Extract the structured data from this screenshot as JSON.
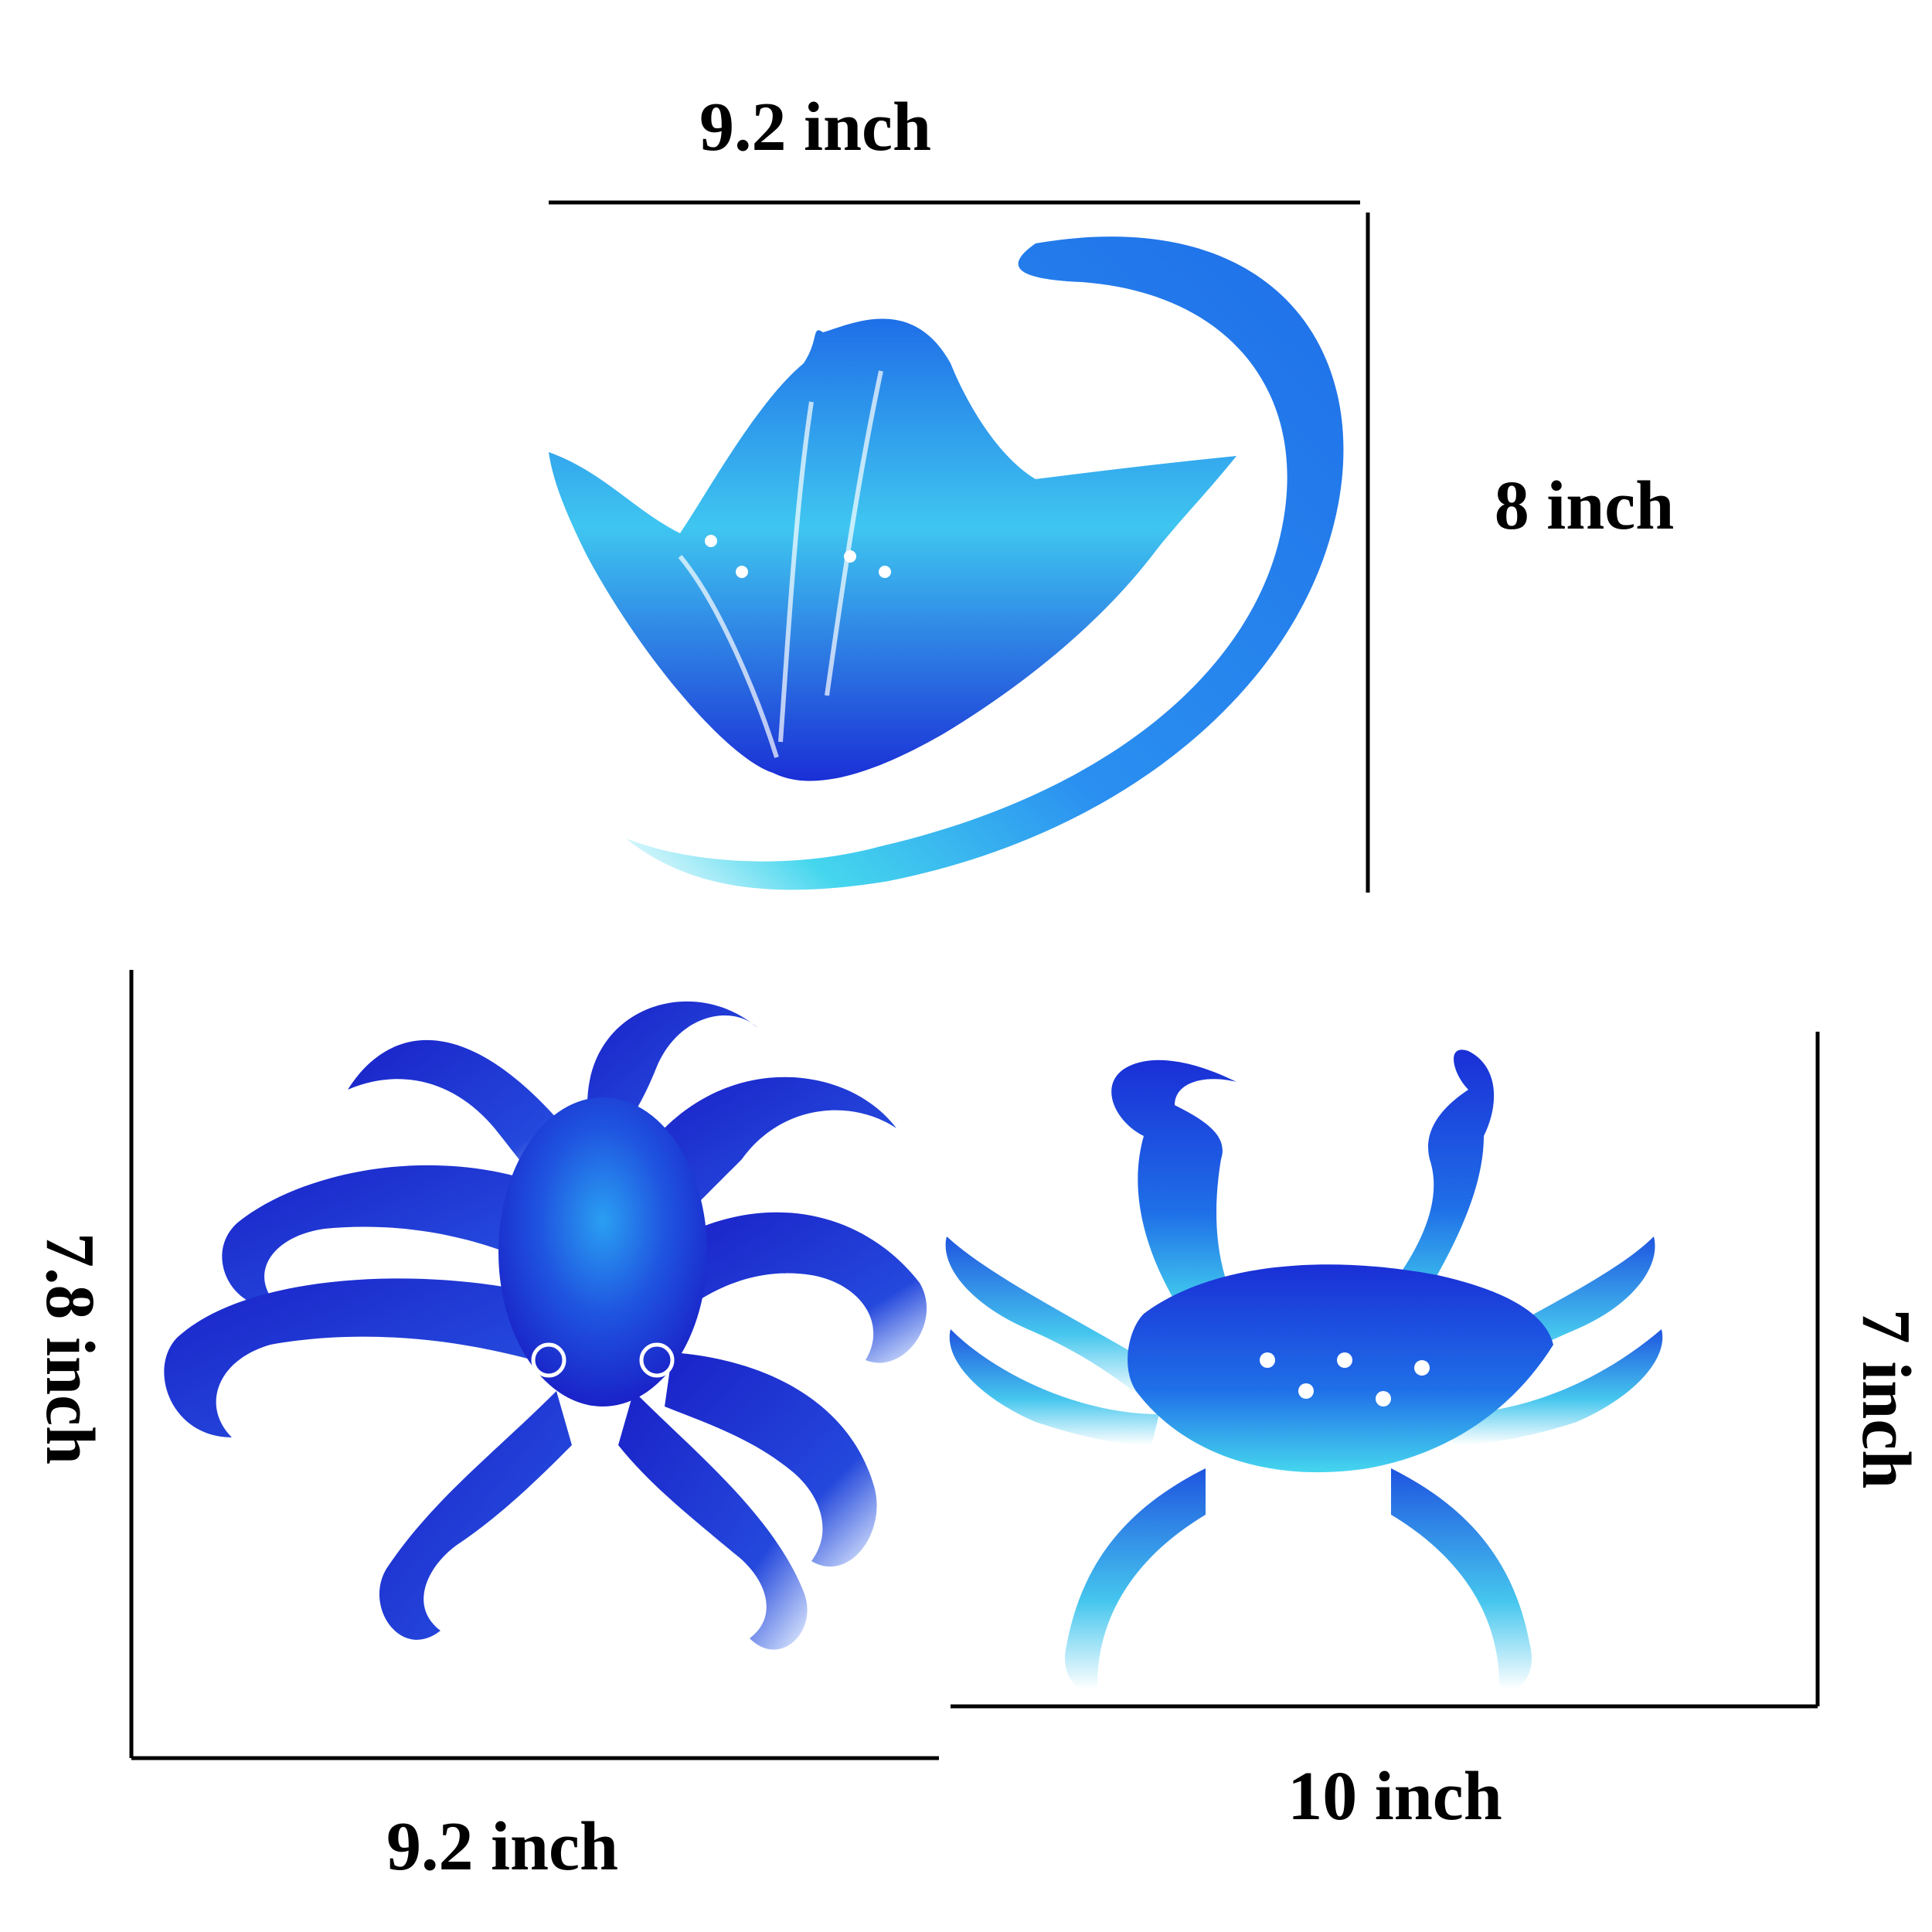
{
  "dimensions": {
    "stingray_width": "9.2 inch",
    "stingray_height": "8 inch",
    "octopus_height": "7.8 inch",
    "octopus_width": "9.2 inch",
    "crab_height": "7 inch",
    "crab_width": "10 inch"
  },
  "figures": [
    {
      "name": "stingray",
      "icon": "stingray-icon"
    },
    {
      "name": "octopus",
      "icon": "octopus-icon"
    },
    {
      "name": "crab",
      "icon": "crab-icon"
    }
  ],
  "colors": {
    "deep_blue": "#1a2fd6",
    "mid_blue": "#1f6fe8",
    "light_blue": "#35b4ef",
    "cyan": "#3fd0ee",
    "highlight": "#ffffff",
    "dimension_line": "#000000"
  }
}
